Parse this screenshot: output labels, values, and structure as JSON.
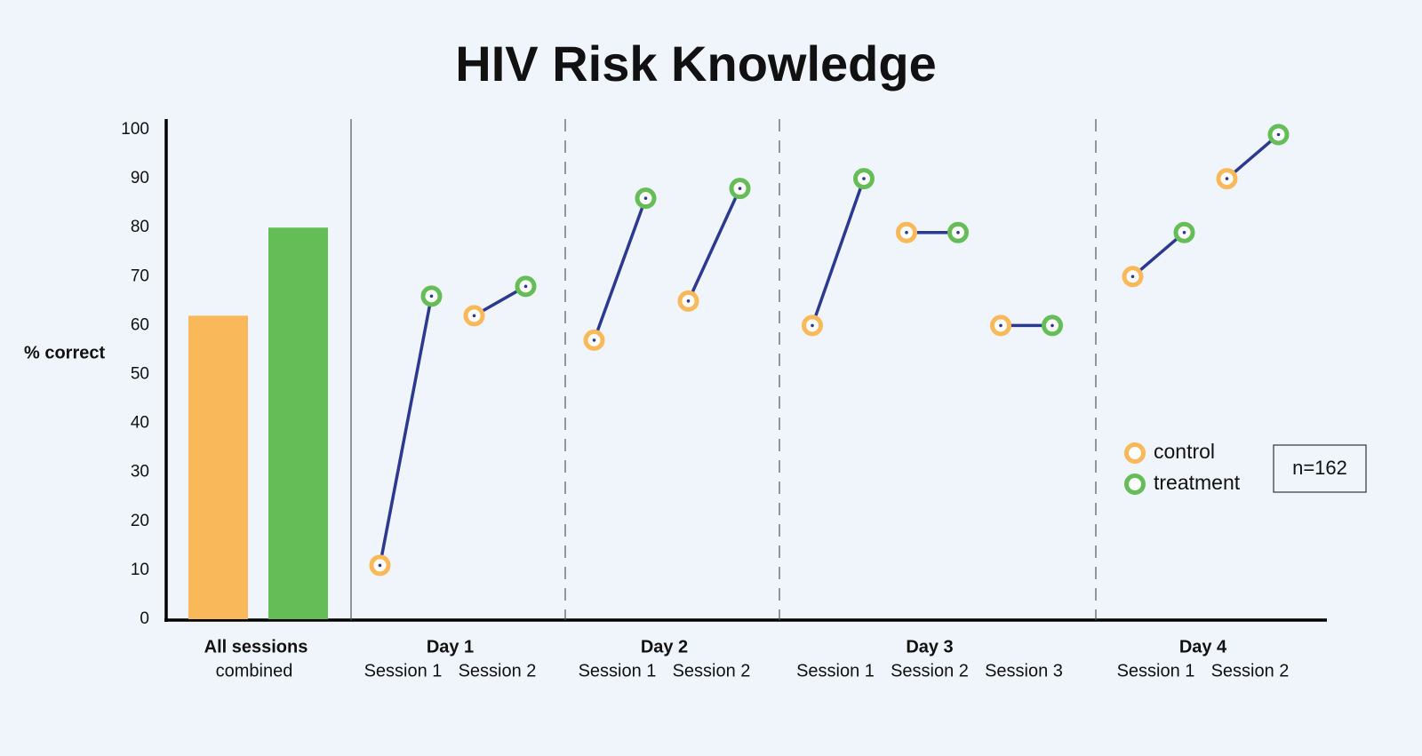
{
  "chart_data": {
    "type": "slope",
    "title": "HIV Risk Knowledge",
    "y_label": "% correct",
    "annotation": "n=162",
    "ylim": [
      0,
      100
    ],
    "yticks": [
      0,
      10,
      20,
      30,
      40,
      50,
      60,
      70,
      80,
      90,
      100
    ],
    "combined": {
      "label": "All sessions",
      "sublabel": "combined"
    },
    "groups": [
      {
        "label": "Day 1",
        "sessions": [
          "Session 1",
          "Session 2"
        ]
      },
      {
        "label": "Day 2",
        "sessions": [
          "Session 1",
          "Session 2"
        ]
      },
      {
        "label": "Day 3",
        "sessions": [
          "Session 1",
          "Session 2",
          "Session 3"
        ]
      },
      {
        "label": "Day 4",
        "sessions": [
          "Session 1",
          "Session 2"
        ]
      }
    ],
    "line_color": "#2b3990",
    "series": [
      {
        "name": "control",
        "color": "#f9b85a",
        "combined": 62,
        "values": [
          11,
          62,
          57,
          65,
          60,
          79,
          60,
          70,
          90
        ]
      },
      {
        "name": "treatment",
        "color": "#65bd58",
        "combined": 80,
        "values": [
          66,
          68,
          86,
          88,
          90,
          79,
          60,
          79,
          99
        ]
      }
    ]
  }
}
